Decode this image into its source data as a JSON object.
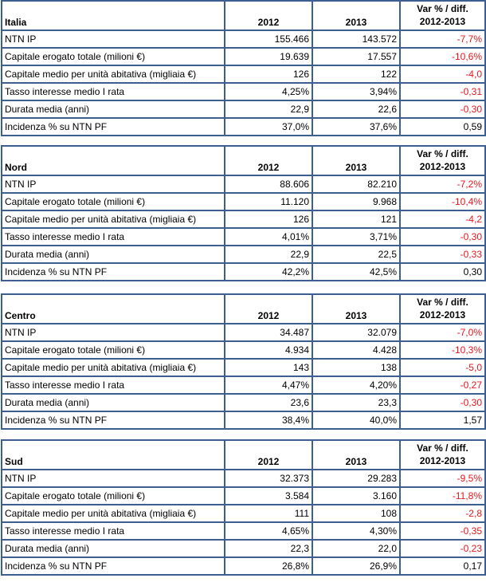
{
  "columns": {
    "y1": "2012",
    "y2": "2013",
    "var_line1": "Var % / diff.",
    "var_line2": "2012-2013"
  },
  "colors": {
    "border": "#3d5f8f",
    "negative": "#e8151b"
  },
  "tables": [
    {
      "region": "Italia",
      "rows": [
        {
          "label": "NTN IP",
          "y1": "155.466",
          "y2": "143.572",
          "var": "-7,7%"
        },
        {
          "label": "Capitale erogato totale (milioni €)",
          "y1": "19.639",
          "y2": "17.557",
          "var": "-10,6%"
        },
        {
          "label": "Capitale medio per unità abitativa (migliaia €)",
          "y1": "126",
          "y2": "122",
          "var": "-4,0"
        },
        {
          "label": "Tasso interesse medio I rata",
          "y1": "4,25%",
          "y2": "3,94%",
          "var": "-0,31"
        },
        {
          "label": "Durata media (anni)",
          "y1": "22,9",
          "y2": "22,6",
          "var": "-0,30"
        },
        {
          "label": "Incidenza % su NTN PF",
          "y1": "37,0%",
          "y2": "37,6%",
          "var": "0,59"
        }
      ]
    },
    {
      "region": "Nord",
      "rows": [
        {
          "label": "NTN IP",
          "y1": "88.606",
          "y2": "82.210",
          "var": "-7,2%"
        },
        {
          "label": "Capitale erogato totale (milioni €)",
          "y1": "11.120",
          "y2": "9.968",
          "var": "-10,4%"
        },
        {
          "label": "Capitale medio per unità abitativa (migliaia €)",
          "y1": "126",
          "y2": "121",
          "var": "-4,2"
        },
        {
          "label": "Tasso interesse medio I rata",
          "y1": "4,01%",
          "y2": "3,71%",
          "var": "-0,30"
        },
        {
          "label": "Durata media (anni)",
          "y1": "22,9",
          "y2": "22,5",
          "var": "-0,33"
        },
        {
          "label": "Incidenza % su NTN PF",
          "y1": "42,2%",
          "y2": "42,5%",
          "var": "0,30"
        }
      ]
    },
    {
      "region": "Centro",
      "rows": [
        {
          "label": "NTN IP",
          "y1": "34.487",
          "y2": "32.079",
          "var": "-7,0%"
        },
        {
          "label": "Capitale erogato totale (milioni €)",
          "y1": "4.934",
          "y2": "4.428",
          "var": "-10,3%"
        },
        {
          "label": "Capitale medio per unità abitativa (migliaia €)",
          "y1": "143",
          "y2": "138",
          "var": "-5,0"
        },
        {
          "label": "Tasso interesse medio I rata",
          "y1": "4,47%",
          "y2": "4,20%",
          "var": "-0,27"
        },
        {
          "label": "Durata media (anni)",
          "y1": "23,6",
          "y2": "23,3",
          "var": "-0,30"
        },
        {
          "label": "Incidenza % su NTN PF",
          "y1": "38,4%",
          "y2": "40,0%",
          "var": "1,57"
        }
      ]
    },
    {
      "region": "Sud",
      "rows": [
        {
          "label": "NTN IP",
          "y1": "32.373",
          "y2": "29.283",
          "var": "-9,5%"
        },
        {
          "label": "Capitale erogato totale (milioni €)",
          "y1": "3.584",
          "y2": "3.160",
          "var": "-11,8%"
        },
        {
          "label": "Capitale medio per unità abitativa (migliaia €)",
          "y1": "111",
          "y2": "108",
          "var": "-2,8"
        },
        {
          "label": "Tasso interesse medio I rata",
          "y1": "4,65%",
          "y2": "4,30%",
          "var": "-0,35"
        },
        {
          "label": "Durata media (anni)",
          "y1": "22,3",
          "y2": "22,0",
          "var": "-0,23"
        },
        {
          "label": "Incidenza % su NTN PF",
          "y1": "26,8%",
          "y2": "26,9%",
          "var": "0,17"
        }
      ]
    }
  ]
}
